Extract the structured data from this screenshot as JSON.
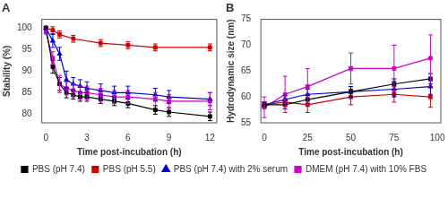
{
  "chart_data": [
    {
      "type": "line",
      "title": "A",
      "xlabel": "Time post-incubation (h)",
      "ylabel": "Stability (%)",
      "xlim": [
        -0.3,
        12.5
      ],
      "xticks": [
        0,
        3,
        6,
        9,
        12
      ],
      "ylim": [
        78,
        102
      ],
      "yticks": [
        80,
        85,
        90,
        95,
        100
      ],
      "grid": false,
      "legend": "bottom",
      "series": [
        {
          "name": "PBS (pH 7.4)",
          "color": "#000000",
          "marker": "square",
          "x": [
            0,
            0.5,
            1,
            1.5,
            2,
            2.5,
            3,
            4,
            5,
            6,
            8,
            9,
            12
          ],
          "values": [
            100,
            91,
            87,
            85,
            84.5,
            84,
            84,
            83.5,
            83,
            82.5,
            81,
            80.5,
            79.5
          ],
          "yerr": [
            0.3,
            1.5,
            1.5,
            1.2,
            1.0,
            1.0,
            1.0,
            1.0,
            1.0,
            1.0,
            1.0,
            1.0,
            1.0
          ]
        },
        {
          "name": "PBS (pH 5.5)",
          "color": "#cc0000",
          "marker": "square",
          "x": [
            0,
            0.5,
            1,
            2,
            4,
            6,
            8,
            12
          ],
          "values": [
            100,
            99.5,
            98.5,
            97.5,
            96.5,
            96,
            95.5,
            95.5
          ],
          "yerr": [
            0.3,
            0.8,
            0.8,
            0.8,
            0.8,
            0.8,
            0.8,
            0.8
          ]
        },
        {
          "name": "PBS (pH 7.4) with 2% serum",
          "color": "#0000cc",
          "marker": "triangle",
          "x": [
            0,
            0.5,
            1,
            1.5,
            2,
            2.5,
            3,
            4,
            5,
            6,
            8,
            9,
            12
          ],
          "values": [
            100,
            97,
            94,
            88,
            87,
            86.5,
            86,
            85.5,
            85,
            85,
            84.5,
            84,
            83.5
          ],
          "yerr": [
            0.3,
            1.5,
            1.5,
            2.0,
            1.5,
            1.5,
            1.5,
            1.5,
            1.5,
            1.5,
            1.5,
            1.5,
            1.5
          ]
        },
        {
          "name": "DMEM (pH 7.4) with 10% FBS",
          "color": "#cc00cc",
          "marker": "square",
          "x": [
            0,
            0.5,
            1,
            1.5,
            2,
            2.5,
            3,
            4,
            5,
            6,
            8,
            9,
            12
          ],
          "values": [
            99,
            93,
            87,
            86,
            85.5,
            85,
            85,
            84.5,
            84,
            84,
            83.5,
            83,
            83
          ],
          "yerr": [
            0.3,
            1.5,
            2.0,
            1.5,
            1.5,
            1.5,
            1.5,
            1.5,
            1.5,
            1.5,
            1.5,
            1.5,
            2.0
          ]
        }
      ]
    },
    {
      "type": "line",
      "title": "B",
      "xlabel": "Time post-incubation (h)",
      "ylabel": "Hydrodynamic size (nm)",
      "xlim": [
        -2,
        102
      ],
      "xticks": [
        0,
        25,
        50,
        75,
        100
      ],
      "ylim": [
        55,
        75
      ],
      "yticks": [
        55,
        60,
        65,
        70,
        75
      ],
      "grid": false,
      "legend": "bottom",
      "series": [
        {
          "name": "PBS (pH 7.4)",
          "color": "#000000",
          "marker": "square",
          "x": [
            0,
            12,
            25,
            50,
            75,
            96
          ],
          "values": [
            58.5,
            58.5,
            59.5,
            61.0,
            62.5,
            63.5
          ],
          "yerr": [
            0.5,
            0.8,
            0.8,
            1.0,
            1.0,
            1.0
          ]
        },
        {
          "name": "PBS (pH 5.5)",
          "color": "#cc0000",
          "marker": "square",
          "x": [
            0,
            12,
            25,
            50,
            75,
            96
          ],
          "values": [
            58.5,
            59.0,
            58.5,
            60.0,
            60.5,
            60.0
          ],
          "yerr": [
            0.5,
            0.8,
            1.5,
            1.5,
            1.5,
            2.0
          ]
        },
        {
          "name": "PBS (pH 7.4) with 2% serum",
          "color": "#0000cc",
          "marker": "triangle",
          "x": [
            0,
            12,
            25,
            50,
            75,
            96
          ],
          "values": [
            58.5,
            59.5,
            60.5,
            61.0,
            61.5,
            62.0
          ],
          "yerr": [
            0.5,
            0.8,
            1.0,
            1.0,
            1.5,
            1.5
          ]
        },
        {
          "name": "DMEM (pH 7.4) with 10% FBS",
          "color": "#cc00cc",
          "marker": "square",
          "x": [
            0,
            12,
            25,
            50,
            75,
            96
          ],
          "values": [
            58.0,
            60.5,
            62.0,
            65.5,
            65.5,
            67.5
          ],
          "yerr": [
            2.0,
            3.5,
            3.5,
            3.0,
            4.5,
            4.5
          ]
        }
      ]
    }
  ]
}
